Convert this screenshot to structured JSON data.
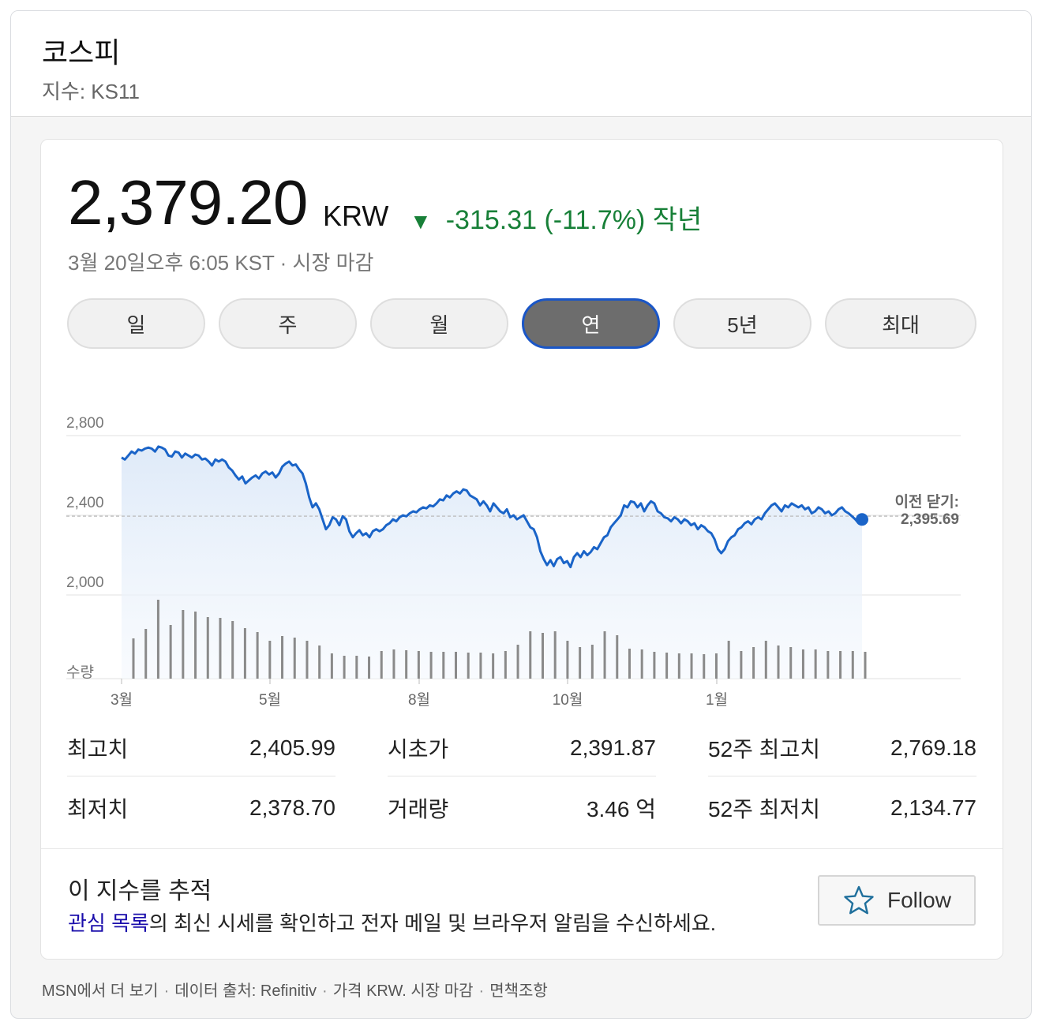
{
  "header": {
    "title": "코스피",
    "subtitle": "지수: KS11"
  },
  "quote": {
    "price": "2,379.20",
    "currency": "KRW",
    "change_arrow": "▼",
    "change_text": "-315.31 (-11.7%) 작년",
    "change_color": "#188038",
    "timestamp": "3월 20일오후 6:05 KST · 시장 마감"
  },
  "tabs": [
    {
      "label": "일",
      "active": false
    },
    {
      "label": "주",
      "active": false
    },
    {
      "label": "월",
      "active": false
    },
    {
      "label": "연",
      "active": true
    },
    {
      "label": "5년",
      "active": false
    },
    {
      "label": "최대",
      "active": false
    }
  ],
  "chart_data": {
    "type": "line",
    "line_color": "#1a64c8",
    "fill_color": "#e8f0fb",
    "volume_color": "#8a8a8a",
    "y_ticks": [
      "2,800",
      "2,400",
      "2,000"
    ],
    "ylim": [
      1580,
      2820
    ],
    "volume_label": "수량",
    "x_ticks": [
      "3월",
      "5월",
      "8월",
      "10월",
      "1월"
    ],
    "previous_close_label": "이전 닫기:",
    "previous_close_value": "2,395.69",
    "previous_close": 2395.69,
    "prices": [
      2690,
      2680,
      2700,
      2720,
      2710,
      2730,
      2725,
      2735,
      2740,
      2735,
      2720,
      2745,
      2740,
      2730,
      2700,
      2695,
      2720,
      2715,
      2690,
      2710,
      2700,
      2690,
      2705,
      2700,
      2680,
      2685,
      2670,
      2650,
      2680,
      2670,
      2680,
      2670,
      2640,
      2625,
      2600,
      2580,
      2595,
      2560,
      2575,
      2590,
      2600,
      2585,
      2610,
      2620,
      2605,
      2615,
      2590,
      2610,
      2645,
      2660,
      2670,
      2650,
      2655,
      2630,
      2610,
      2560,
      2490,
      2440,
      2460,
      2430,
      2380,
      2330,
      2350,
      2390,
      2380,
      2350,
      2395,
      2380,
      2320,
      2290,
      2310,
      2325,
      2300,
      2310,
      2290,
      2320,
      2330,
      2320,
      2330,
      2350,
      2360,
      2380,
      2370,
      2390,
      2400,
      2395,
      2410,
      2420,
      2415,
      2430,
      2440,
      2435,
      2450,
      2445,
      2460,
      2480,
      2475,
      2500,
      2490,
      2510,
      2520,
      2510,
      2530,
      2525,
      2500,
      2490,
      2480,
      2450,
      2470,
      2450,
      2420,
      2460,
      2440,
      2420,
      2410,
      2430,
      2390,
      2400,
      2380,
      2390,
      2400,
      2370,
      2340,
      2330,
      2290,
      2220,
      2180,
      2150,
      2175,
      2145,
      2180,
      2190,
      2160,
      2170,
      2140,
      2190,
      2210,
      2190,
      2220,
      2200,
      2215,
      2240,
      2230,
      2260,
      2290,
      2300,
      2340,
      2360,
      2380,
      2400,
      2450,
      2440,
      2470,
      2465,
      2440,
      2460,
      2420,
      2450,
      2470,
      2460,
      2420,
      2410,
      2390,
      2385,
      2370,
      2390,
      2380,
      2360,
      2380,
      2370,
      2350,
      2360,
      2330,
      2350,
      2340,
      2320,
      2310,
      2280,
      2230,
      2210,
      2230,
      2270,
      2290,
      2300,
      2330,
      2340,
      2360,
      2370,
      2355,
      2380,
      2390,
      2380,
      2410,
      2430,
      2450,
      2460,
      2440,
      2420,
      2450,
      2440,
      2460,
      2450,
      2440,
      2450,
      2430,
      2440,
      2410,
      2420,
      2440,
      2430,
      2410,
      2420,
      2400,
      2410,
      2430,
      2440,
      2420,
      2410,
      2395,
      2380,
      2360,
      2379.2
    ],
    "volumes": [
      0.51,
      0.63,
      1.0,
      0.68,
      0.87,
      0.85,
      0.78,
      0.77,
      0.73,
      0.64,
      0.59,
      0.48,
      0.54,
      0.52,
      0.48,
      0.42,
      0.32,
      0.29,
      0.29,
      0.28,
      0.35,
      0.37,
      0.36,
      0.35,
      0.34,
      0.34,
      0.34,
      0.33,
      0.33,
      0.32,
      0.35,
      0.43,
      0.6,
      0.58,
      0.6,
      0.48,
      0.4,
      0.43,
      0.6,
      0.55,
      0.38,
      0.37,
      0.34,
      0.33,
      0.32,
      0.32,
      0.31,
      0.32,
      0.48,
      0.35,
      0.4,
      0.48,
      0.42,
      0.4,
      0.37,
      0.37,
      0.35,
      0.35,
      0.35,
      0.34
    ]
  },
  "stats": [
    {
      "label": "최고치",
      "value": "2,405.99"
    },
    {
      "label": "시초가",
      "value": "2,391.87"
    },
    {
      "label": "52주 최고치",
      "value": "2,769.18"
    },
    {
      "label": "최저치",
      "value": "2,378.70"
    },
    {
      "label": "거래량",
      "value": "3.46 억"
    },
    {
      "label": "52주 최저치",
      "value": "2,134.77"
    }
  ],
  "follow": {
    "title": "이 지수를 추적",
    "link_text": "관심 목록",
    "desc_rest": "의 최신 시세를 확인하고 전자 메일 및 브라우저 알림을 수신하세요.",
    "button_label": "Follow",
    "button_icon": "star-outline-icon",
    "star_color": "#1f6f9c"
  },
  "footer": {
    "msn": "MSN에서 더 보기",
    "source": "데이터 출처: Refinitiv",
    "price_note": "가격 KRW. 시장 마감",
    "disclaimer": "면책조항",
    "separator": "·"
  }
}
